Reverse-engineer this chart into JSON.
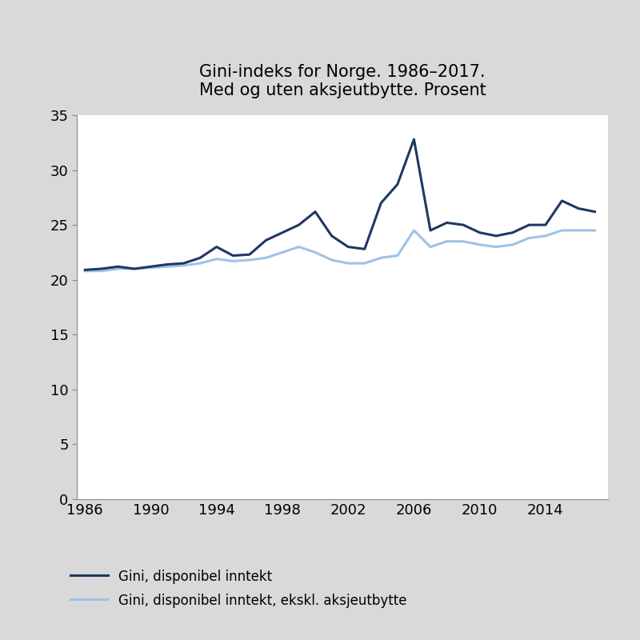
{
  "title": "Gini-indeks for Norge. 1986–2017.\nMed og uten aksjeutbytte. Prosent",
  "years": [
    1986,
    1987,
    1988,
    1989,
    1990,
    1991,
    1992,
    1993,
    1994,
    1995,
    1996,
    1997,
    1998,
    1999,
    2000,
    2001,
    2002,
    2003,
    2004,
    2005,
    2006,
    2007,
    2008,
    2009,
    2010,
    2011,
    2012,
    2013,
    2014,
    2015,
    2016,
    2017
  ],
  "gini_med": [
    20.9,
    21.0,
    21.2,
    21.0,
    21.2,
    21.4,
    21.5,
    22.0,
    23.0,
    22.2,
    22.3,
    23.6,
    24.3,
    25.0,
    26.2,
    24.0,
    23.0,
    22.8,
    27.0,
    28.7,
    32.8,
    24.5,
    25.2,
    25.0,
    24.3,
    24.0,
    24.3,
    25.0,
    25.0,
    27.2,
    26.5,
    26.2
  ],
  "gini_uten": [
    20.8,
    20.8,
    21.0,
    21.0,
    21.1,
    21.2,
    21.3,
    21.5,
    21.9,
    21.7,
    21.8,
    22.0,
    22.5,
    23.0,
    22.5,
    21.8,
    21.5,
    21.5,
    22.0,
    22.2,
    24.5,
    23.0,
    23.5,
    23.5,
    23.2,
    23.0,
    23.2,
    23.8,
    24.0,
    24.5,
    24.5,
    24.5
  ],
  "color_med": "#1f3864",
  "color_uten": "#9dc3e6",
  "legend_med": "Gini, disponibel inntekt",
  "legend_uten": "Gini, disponibel inntekt, ekskl. aksjeutbytte",
  "ylim": [
    0,
    35
  ],
  "yticks": [
    0,
    5,
    10,
    15,
    20,
    25,
    30,
    35
  ],
  "xticks": [
    1986,
    1990,
    1994,
    1998,
    2002,
    2006,
    2010,
    2014
  ],
  "background_color": "#d9d9d9",
  "plot_background": "#ffffff",
  "linewidth_med": 2.2,
  "linewidth_uten": 2.2,
  "title_fontsize": 15,
  "tick_fontsize": 13,
  "legend_fontsize": 12,
  "xlim_left": 1985.5,
  "xlim_right": 2017.8
}
